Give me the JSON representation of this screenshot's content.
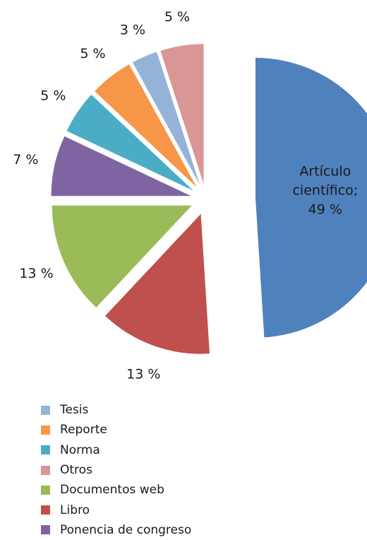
{
  "chart_data": {
    "type": "pie",
    "title": "",
    "slices": [
      {
        "name": "Artículo científico",
        "value": 49,
        "label": "Artículo científico;\n49 %",
        "color": "#4F81BD"
      },
      {
        "name": "Libro",
        "value": 13,
        "label": "13 %",
        "color": "#C0504D"
      },
      {
        "name": "Documentos web",
        "value": 13,
        "label": "13 %",
        "color": "#9BBB59"
      },
      {
        "name": "Ponencia de congreso",
        "value": 7,
        "label": "7 %",
        "color": "#8064A2"
      },
      {
        "name": "Norma",
        "value": 5,
        "label": "5 %",
        "color": "#4BACC6"
      },
      {
        "name": "Reporte",
        "value": 5,
        "label": "5 %",
        "color": "#F79646"
      },
      {
        "name": "Tesis",
        "value": 3,
        "label": "3 %",
        "color": "#95B3D7"
      },
      {
        "name": "Otros",
        "value": 5,
        "label": "5 %",
        "color": "#D99694"
      }
    ],
    "legend": {
      "placement": "bottom-left",
      "order": [
        "Tesis",
        "Reporte",
        "Norma",
        "Otros",
        "Documentos web",
        "Libro",
        "Ponencia de congreso"
      ]
    },
    "exploded": true
  }
}
